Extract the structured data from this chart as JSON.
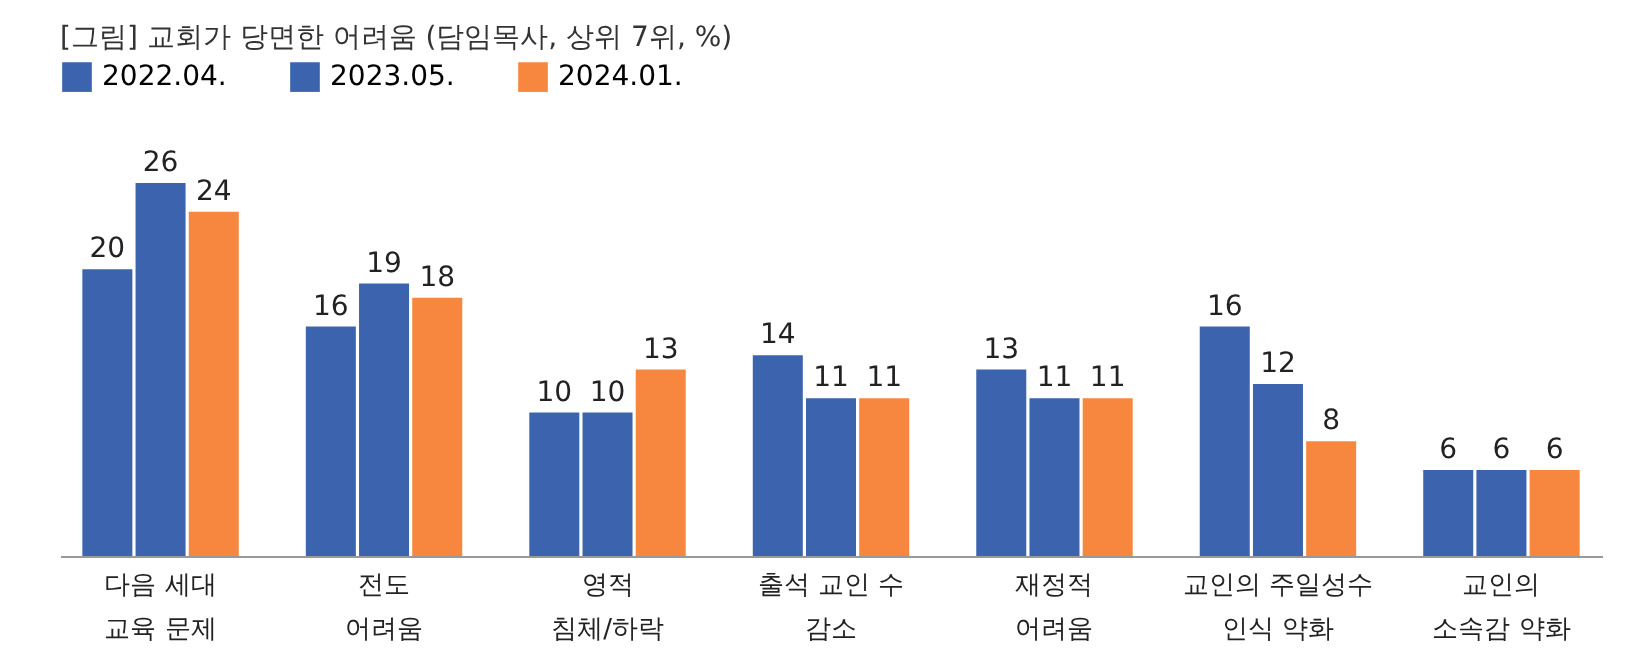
{
  "chart_data": {
    "type": "bar",
    "title": "[그림] 교회가 당면한 어려움 (담임목사, 상위 7위, %)",
    "categories": [
      "다음 세대\n교육 문제",
      "전도\n어려움",
      "영적\n침체/하락",
      "출석 교인 수\n감소",
      "재정적\n어려움",
      "교인의 주일성수\n인식 약화",
      "교인의\n소속감 약화"
    ],
    "series": [
      {
        "name": "2022.04.",
        "color": "#3c64ae",
        "values": [
          20,
          16,
          10,
          14,
          13,
          16,
          6
        ]
      },
      {
        "name": "2023.05.",
        "color": "#3c64ae",
        "values": [
          26,
          19,
          10,
          11,
          11,
          12,
          6
        ]
      },
      {
        "name": "2024.01.",
        "color": "#f7873f",
        "values": [
          24,
          18,
          13,
          11,
          11,
          8,
          6
        ]
      }
    ],
    "data_labels": true,
    "legend": "top",
    "grid": false
  }
}
